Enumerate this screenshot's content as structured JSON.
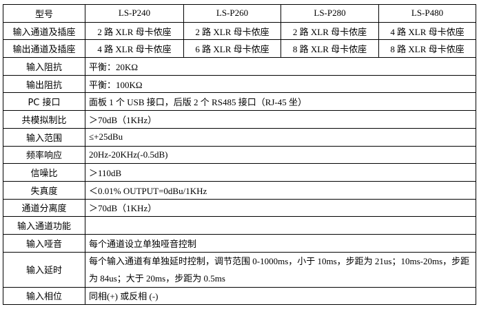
{
  "header": {
    "label": "型号",
    "models": [
      "LS-P240",
      "LS-P260",
      "LS-P280",
      "LS-P480"
    ]
  },
  "model_rows": [
    {
      "label": "输入通道及插座",
      "values": [
        "2 路 XLR 母卡侬座",
        "2 路 XLR 母卡侬座",
        "2 路 XLR 母卡侬座",
        "4 路 XLR 母卡侬座"
      ]
    },
    {
      "label": "输出通道及插座",
      "values": [
        "4 路 XLR 母卡侬座",
        "6 路 XLR 母卡侬座",
        "8 路 XLR 母卡侬座",
        "8 路 XLR 母卡侬座"
      ]
    }
  ],
  "spec_rows": [
    {
      "label": "输入阻抗",
      "value": "平衡：20KΩ"
    },
    {
      "label": "输出阻抗",
      "value": "平衡：100KΩ"
    },
    {
      "label": "PC 接口",
      "value": "面板 1 个 USB 接口，后版 2 个 RS485 接口（RJ-45 坐）"
    },
    {
      "label": "共模拟制比",
      "value": "＞70dB（1KHz）"
    },
    {
      "label": "输入范围",
      "value": "≤+25dBu"
    },
    {
      "label": "频率响应",
      "value": "20Hz-20KHz(-0.5dB)"
    },
    {
      "label": "信噪比",
      "value": "＞110dB"
    },
    {
      "label": "失真度",
      "value": "＜0.01% OUTPUT=0dBu/1KHz"
    },
    {
      "label": "通道分离度",
      "value": "＞70dB（1KHz）"
    },
    {
      "label": "输入通道功能",
      "value": ""
    },
    {
      "label": "输入哑音",
      "value": "每个通道设立单独哑音控制"
    },
    {
      "label": "输入延时",
      "value": "每个输入通道有单独延时控制，调节范围 0-1000ms，小于 10ms，步距为 21us；10ms-20ms，步距为 84us；大于 20ms，步距为 0.5ms"
    },
    {
      "label": "输入相位",
      "value": "同相(+) 或反相 (-)"
    }
  ]
}
